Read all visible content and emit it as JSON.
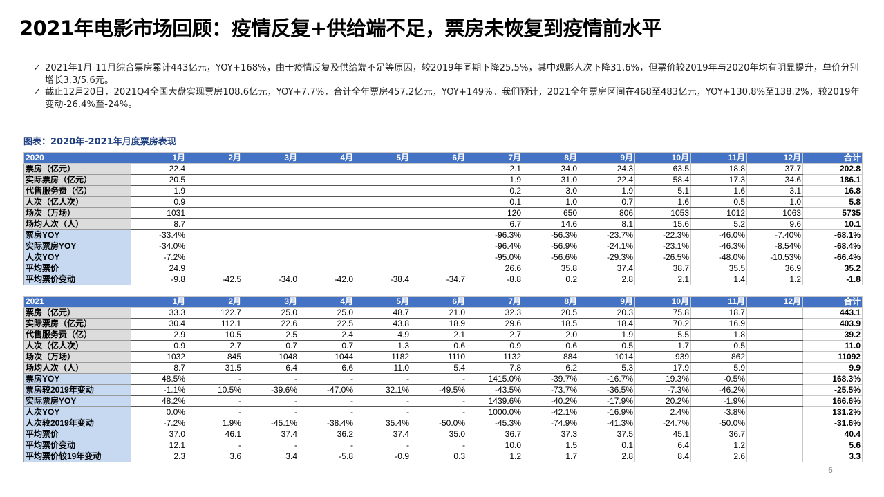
{
  "title": "2021年电影市场回顾：疫情反复+供给端不足，票房未恢复到疫情前水平",
  "bullets": [
    "2021年1月-11月综合票房累计443亿元，YOY+168%，由于疫情反复及供给端不足等原因，较2019年同期下降25.5%，其中观影人次下降31.6%，但票价较2019年与2020年均有明显提升，单价分别增长3.3/5.6元。",
    "截止12月20日，2021Q4全国大盘实现票房108.6亿元，YOY+7.7%，合计全年票房457.2亿元，YOY+149%。我们预计，2021全年票房区间在468至483亿元，YOY+130.8%至138.2%，较2019年变动-26.4%至-24%。"
  ],
  "check_glyph": "✓",
  "caption": "图表：2020年-2021年月度票房表现",
  "tables": [
    {
      "year": "2020",
      "header": [
        "1月",
        "2月",
        "3月",
        "4月",
        "5月",
        "6月",
        "7月",
        "8月",
        "9月",
        "10月",
        "11月",
        "12月",
        "合计"
      ],
      "rows": [
        {
          "label": "票房（亿元）",
          "blue": false,
          "values": [
            "22.4",
            "",
            "",
            "",
            "",
            "",
            "2.1",
            "34.0",
            "24.3",
            "63.5",
            "18.8",
            "37.7"
          ],
          "total": "202.8"
        },
        {
          "label": "实际票房（亿元）",
          "blue": false,
          "values": [
            "20.5",
            "",
            "",
            "",
            "",
            "",
            "1.9",
            "31.0",
            "22.4",
            "58.4",
            "17.3",
            "34.6"
          ],
          "total": "186.1"
        },
        {
          "label": "代售服务费（亿）",
          "blue": false,
          "values": [
            "1.9",
            "",
            "",
            "",
            "",
            "",
            "0.2",
            "3.0",
            "1.9",
            "5.1",
            "1.6",
            "3.1"
          ],
          "total": "16.8"
        },
        {
          "label": "人次（亿人次）",
          "blue": false,
          "values": [
            "0.9",
            "",
            "",
            "",
            "",
            "",
            "0.1",
            "1.0",
            "0.7",
            "1.6",
            "0.5",
            "1.0"
          ],
          "total": "5.8"
        },
        {
          "label": "场次（万场）",
          "blue": false,
          "values": [
            "1031",
            "",
            "",
            "",
            "",
            "",
            "120",
            "650",
            "806",
            "1053",
            "1012",
            "1063"
          ],
          "total": "5735"
        },
        {
          "label": "场均人次（人）",
          "blue": false,
          "values": [
            "8.7",
            "",
            "",
            "",
            "",
            "",
            "6.7",
            "14.6",
            "8.1",
            "15.6",
            "5.2",
            "9.6"
          ],
          "total": "10.1"
        },
        {
          "label": "票房YOY",
          "blue": true,
          "values": [
            "-33.4%",
            "",
            "",
            "",
            "",
            "",
            "-96.3%",
            "-56.3%",
            "-23.7%",
            "-22.3%",
            "-46.0%",
            "-7.40%"
          ],
          "total": "-68.1%"
        },
        {
          "label": "实际票房YOY",
          "blue": true,
          "values": [
            "-34.0%",
            "",
            "",
            "",
            "",
            "",
            "-96.4%",
            "-56.9%",
            "-24.1%",
            "-23.1%",
            "-46.3%",
            "-8.54%"
          ],
          "total": "-68.4%"
        },
        {
          "label": "人次YOY",
          "blue": true,
          "values": [
            "-7.2%",
            "",
            "",
            "",
            "",
            "",
            "-95.0%",
            "-56.6%",
            "-29.3%",
            "-26.5%",
            "-48.0%",
            "-10.53%"
          ],
          "total": "-66.4%"
        },
        {
          "label": "平均票价",
          "blue": true,
          "values": [
            "24.9",
            "",
            "",
            "",
            "",
            "",
            "26.6",
            "35.8",
            "37.4",
            "38.7",
            "35.5",
            "36.9"
          ],
          "total": "35.2"
        },
        {
          "label": "平均票价变动",
          "blue": true,
          "values": [
            "-9.8",
            "-42.5",
            "-34.0",
            "-42.0",
            "-38.4",
            "-34.7",
            "-8.8",
            "0.2",
            "2.8",
            "2.1",
            "1.4",
            "1.2"
          ],
          "total": "-1.8"
        }
      ]
    },
    {
      "year": "2021",
      "header": [
        "1月",
        "2月",
        "3月",
        "4月",
        "5月",
        "6月",
        "7月",
        "8月",
        "9月",
        "10月",
        "11月",
        "12月",
        "合计"
      ],
      "rows": [
        {
          "label": "票房（亿元）",
          "blue": false,
          "values": [
            "33.3",
            "122.7",
            "25.0",
            "25.0",
            "48.7",
            "21.0",
            "32.3",
            "20.5",
            "20.3",
            "75.8",
            "18.7",
            ""
          ],
          "total": "443.1"
        },
        {
          "label": "实际票房（亿元）",
          "blue": false,
          "values": [
            "30.4",
            "112.1",
            "22.6",
            "22.5",
            "43.8",
            "18.9",
            "29.6",
            "18.5",
            "18.4",
            "70.2",
            "16.9",
            ""
          ],
          "total": "403.9"
        },
        {
          "label": "代售服务费（亿）",
          "blue": false,
          "values": [
            "2.9",
            "10.5",
            "2.5",
            "2.4",
            "4.9",
            "2.1",
            "2.7",
            "2.0",
            "1.9",
            "5.5",
            "1.8",
            ""
          ],
          "total": "39.2"
        },
        {
          "label": "人次（亿人次）",
          "blue": false,
          "values": [
            "0.9",
            "2.7",
            "0.7",
            "0.7",
            "1.3",
            "0.6",
            "0.9",
            "0.6",
            "0.5",
            "1.7",
            "0.5",
            ""
          ],
          "total": "11.0"
        },
        {
          "label": "场次（万场）",
          "blue": false,
          "values": [
            "1032",
            "845",
            "1048",
            "1044",
            "1182",
            "1110",
            "1132",
            "884",
            "1014",
            "939",
            "862",
            ""
          ],
          "total": "11092"
        },
        {
          "label": "场均人次（人）",
          "blue": false,
          "values": [
            "8.7",
            "31.5",
            "6.4",
            "6.6",
            "11.0",
            "5.4",
            "7.8",
            "6.2",
            "5.3",
            "17.9",
            "5.9",
            ""
          ],
          "total": "9.9"
        },
        {
          "label": "票房YOY",
          "blue": true,
          "values": [
            "48.5%",
            "-",
            "-",
            "-",
            "-",
            "-",
            "1415.0%",
            "-39.7%",
            "-16.7%",
            "19.3%",
            "-0.5%",
            ""
          ],
          "total": "168.3%"
        },
        {
          "label": "票房较2019年变动",
          "blue": true,
          "values": [
            "-1.1%",
            "10.5%",
            "-39.6%",
            "-47.0%",
            "32.1%",
            "-49.5%",
            "-43.5%",
            "-73.7%",
            "-36.5%",
            "-7.3%",
            "-46.2%",
            ""
          ],
          "total": "-25.5%"
        },
        {
          "label": "实际票房YOY",
          "blue": true,
          "values": [
            "48.2%",
            "-",
            "-",
            "-",
            "-",
            "-",
            "1439.6%",
            "-40.2%",
            "-17.9%",
            "20.2%",
            "-1.9%",
            ""
          ],
          "total": "166.6%"
        },
        {
          "label": "人次YOY",
          "blue": true,
          "values": [
            "0.0%",
            "-",
            "-",
            "-",
            "-",
            "-",
            "1000.0%",
            "-42.1%",
            "-16.9%",
            "2.4%",
            "-3.8%",
            ""
          ],
          "total": "131.2%"
        },
        {
          "label": "人次较2019年变动",
          "blue": true,
          "values": [
            "-7.2%",
            "1.9%",
            "-45.1%",
            "-38.4%",
            "35.4%",
            "-50.0%",
            "-45.3%",
            "-74.9%",
            "-41.3%",
            "-24.7%",
            "-50.0%",
            ""
          ],
          "total": "-31.6%"
        },
        {
          "label": "平均票价",
          "blue": true,
          "values": [
            "37.0",
            "46.1",
            "37.4",
            "36.2",
            "37.4",
            "35.0",
            "36.7",
            "37.3",
            "37.5",
            "45.1",
            "36.7",
            ""
          ],
          "total": "40.4"
        },
        {
          "label": "平均票价变动",
          "blue": true,
          "values": [
            "12.1",
            "-",
            "-",
            "-",
            "-",
            "-",
            "10.0",
            "1.5",
            "0.1",
            "6.4",
            "1.2",
            ""
          ],
          "total": "5.6"
        },
        {
          "label": "平均票价较19年变动",
          "blue": true,
          "values": [
            "2.3",
            "3.6",
            "3.4",
            "-5.8",
            "-0.9",
            "0.3",
            "1.2",
            "1.7",
            "2.8",
            "8.4",
            "2.6",
            ""
          ],
          "total": "3.3"
        }
      ]
    }
  ],
  "page_number": "6"
}
